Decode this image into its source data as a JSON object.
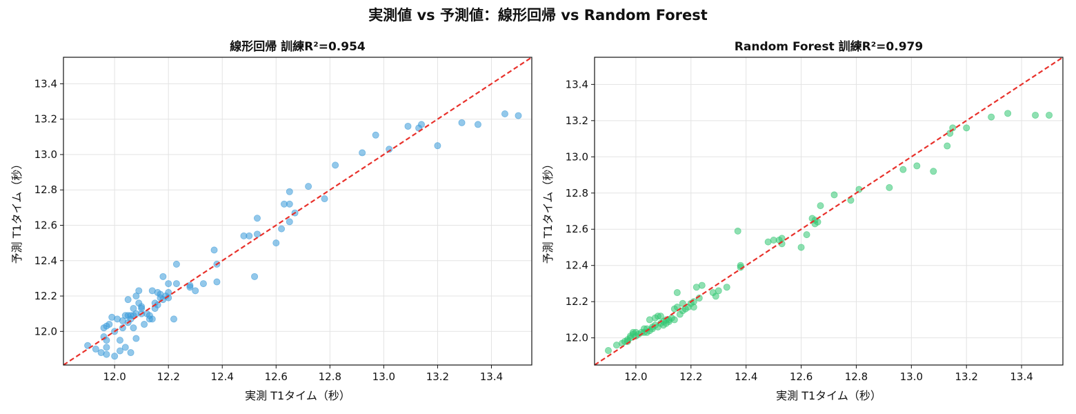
{
  "figure_title": "実測値 vs 予測値：線形回帰 vs Random Forest",
  "colors": {
    "linear_points": "#3a9ad9",
    "rf_points": "#33c773",
    "reference_line": "#e8302a",
    "grid": "#e3e3e3"
  },
  "chart_data": [
    {
      "type": "scatter",
      "title": "線形回帰  訓練R²=0.954",
      "xlabel": "実測 T1タイム（秒）",
      "ylabel": "予測 T1タイム（秒）",
      "xlim": [
        11.81,
        13.55
      ],
      "ylim": [
        11.81,
        13.55
      ],
      "xticks": [
        "12.0",
        "12.2",
        "12.4",
        "12.6",
        "12.8",
        "13.0",
        "13.2",
        "13.4"
      ],
      "yticks": [
        "12.0",
        "12.2",
        "12.4",
        "12.6",
        "12.8",
        "13.0",
        "13.2",
        "13.4"
      ],
      "grid": true,
      "reference_line": "y = x (dashed)",
      "points": [
        [
          11.9,
          11.92
        ],
        [
          11.93,
          11.9
        ],
        [
          11.95,
          11.88
        ],
        [
          11.96,
          11.97
        ],
        [
          11.96,
          12.02
        ],
        [
          11.97,
          11.95
        ],
        [
          11.97,
          11.91
        ],
        [
          11.97,
          11.87
        ],
        [
          11.97,
          12.03
        ],
        [
          11.98,
          12.04
        ],
        [
          11.99,
          12.08
        ],
        [
          12.0,
          12.0
        ],
        [
          12.0,
          11.86
        ],
        [
          12.01,
          12.07
        ],
        [
          12.02,
          11.89
        ],
        [
          12.02,
          11.95
        ],
        [
          12.03,
          12.06
        ],
        [
          12.03,
          12.02
        ],
        [
          12.04,
          12.09
        ],
        [
          12.04,
          11.91
        ],
        [
          12.05,
          12.05
        ],
        [
          12.05,
          12.09
        ],
        [
          12.05,
          12.18
        ],
        [
          12.06,
          12.09
        ],
        [
          12.06,
          12.07
        ],
        [
          12.06,
          11.88
        ],
        [
          12.07,
          12.09
        ],
        [
          12.07,
          12.13
        ],
        [
          12.07,
          12.02
        ],
        [
          12.08,
          12.1
        ],
        [
          12.08,
          12.2
        ],
        [
          12.08,
          11.96
        ],
        [
          12.09,
          12.23
        ],
        [
          12.09,
          12.16
        ],
        [
          12.1,
          12.13
        ],
        [
          12.1,
          12.14
        ],
        [
          12.1,
          12.1
        ],
        [
          12.11,
          12.04
        ],
        [
          12.12,
          12.1
        ],
        [
          12.13,
          12.07
        ],
        [
          12.13,
          12.09
        ],
        [
          12.14,
          12.07
        ],
        [
          12.14,
          12.23
        ],
        [
          12.15,
          12.13
        ],
        [
          12.15,
          12.16
        ],
        [
          12.16,
          12.15
        ],
        [
          12.16,
          12.22
        ],
        [
          12.17,
          12.19
        ],
        [
          12.17,
          12.21
        ],
        [
          12.18,
          12.31
        ],
        [
          12.18,
          12.18
        ],
        [
          12.19,
          12.2
        ],
        [
          12.2,
          12.19
        ],
        [
          12.2,
          12.22
        ],
        [
          12.2,
          12.27
        ],
        [
          12.22,
          12.07
        ],
        [
          12.23,
          12.27
        ],
        [
          12.23,
          12.38
        ],
        [
          12.28,
          12.26
        ],
        [
          12.28,
          12.25
        ],
        [
          12.3,
          12.23
        ],
        [
          12.33,
          12.27
        ],
        [
          12.37,
          12.46
        ],
        [
          12.38,
          12.38
        ],
        [
          12.38,
          12.28
        ],
        [
          12.48,
          12.54
        ],
        [
          12.5,
          12.54
        ],
        [
          12.52,
          12.31
        ],
        [
          12.53,
          12.55
        ],
        [
          12.53,
          12.64
        ],
        [
          12.6,
          12.5
        ],
        [
          12.62,
          12.58
        ],
        [
          12.63,
          12.72
        ],
        [
          12.65,
          12.62
        ],
        [
          12.65,
          12.72
        ],
        [
          12.65,
          12.79
        ],
        [
          12.67,
          12.67
        ],
        [
          12.72,
          12.82
        ],
        [
          12.78,
          12.75
        ],
        [
          12.82,
          12.94
        ],
        [
          12.92,
          13.01
        ],
        [
          12.97,
          13.11
        ],
        [
          13.02,
          13.03
        ],
        [
          13.09,
          13.16
        ],
        [
          13.13,
          13.15
        ],
        [
          13.14,
          13.17
        ],
        [
          13.2,
          13.05
        ],
        [
          13.29,
          13.18
        ],
        [
          13.35,
          13.17
        ],
        [
          13.45,
          13.23
        ],
        [
          13.5,
          13.22
        ]
      ]
    },
    {
      "type": "scatter",
      "title": "Random Forest  訓練R²=0.979",
      "xlabel": "実測 T1タイム（秒）",
      "ylabel": "予測 T1タイム（秒）",
      "xlim": [
        11.85,
        13.55
      ],
      "ylim": [
        11.85,
        13.55
      ],
      "xticks": [
        "12.0",
        "12.2",
        "12.4",
        "12.6",
        "12.8",
        "13.0",
        "13.2",
        "13.4"
      ],
      "yticks": [
        "12.0",
        "12.2",
        "12.4",
        "12.6",
        "12.8",
        "13.0",
        "13.2",
        "13.4"
      ],
      "grid": true,
      "reference_line": "y = x (dashed)",
      "points": [
        [
          11.9,
          11.93
        ],
        [
          11.93,
          11.96
        ],
        [
          11.95,
          11.97
        ],
        [
          11.96,
          11.98
        ],
        [
          11.97,
          11.98
        ],
        [
          11.97,
          11.99
        ],
        [
          11.98,
          12.0
        ],
        [
          11.98,
          12.01
        ],
        [
          11.99,
          12.02
        ],
        [
          11.99,
          12.03
        ],
        [
          12.0,
          12.01
        ],
        [
          12.0,
          12.03
        ],
        [
          12.01,
          12.02
        ],
        [
          12.02,
          12.03
        ],
        [
          12.03,
          12.03
        ],
        [
          12.03,
          12.05
        ],
        [
          12.04,
          12.03
        ],
        [
          12.04,
          12.05
        ],
        [
          12.05,
          12.04
        ],
        [
          12.05,
          12.1
        ],
        [
          12.06,
          12.06
        ],
        [
          12.06,
          12.05
        ],
        [
          12.07,
          12.07
        ],
        [
          12.07,
          12.11
        ],
        [
          12.08,
          12.12
        ],
        [
          12.08,
          12.06
        ],
        [
          12.09,
          12.08
        ],
        [
          12.09,
          12.12
        ],
        [
          12.1,
          12.09
        ],
        [
          12.1,
          12.07
        ],
        [
          12.11,
          12.1
        ],
        [
          12.11,
          12.08
        ],
        [
          12.12,
          12.09
        ],
        [
          12.12,
          12.1
        ],
        [
          12.13,
          12.11
        ],
        [
          12.14,
          12.16
        ],
        [
          12.14,
          12.1
        ],
        [
          12.15,
          12.17
        ],
        [
          12.15,
          12.25
        ],
        [
          12.16,
          12.13
        ],
        [
          12.17,
          12.15
        ],
        [
          12.17,
          12.19
        ],
        [
          12.18,
          12.16
        ],
        [
          12.19,
          12.17
        ],
        [
          12.2,
          12.19
        ],
        [
          12.21,
          12.2
        ],
        [
          12.21,
          12.17
        ],
        [
          12.22,
          12.28
        ],
        [
          12.23,
          12.22
        ],
        [
          12.24,
          12.29
        ],
        [
          12.28,
          12.25
        ],
        [
          12.29,
          12.23
        ],
        [
          12.3,
          12.26
        ],
        [
          12.33,
          12.28
        ],
        [
          12.37,
          12.59
        ],
        [
          12.38,
          12.4
        ],
        [
          12.38,
          12.39
        ],
        [
          12.48,
          12.53
        ],
        [
          12.5,
          12.54
        ],
        [
          12.52,
          12.54
        ],
        [
          12.53,
          12.55
        ],
        [
          12.53,
          12.52
        ],
        [
          12.6,
          12.5
        ],
        [
          12.62,
          12.57
        ],
        [
          12.64,
          12.66
        ],
        [
          12.65,
          12.65
        ],
        [
          12.65,
          12.63
        ],
        [
          12.66,
          12.64
        ],
        [
          12.67,
          12.73
        ],
        [
          12.72,
          12.79
        ],
        [
          12.78,
          12.76
        ],
        [
          12.81,
          12.82
        ],
        [
          12.92,
          12.83
        ],
        [
          12.97,
          12.93
        ],
        [
          13.02,
          12.95
        ],
        [
          13.08,
          12.92
        ],
        [
          13.13,
          13.06
        ],
        [
          13.14,
          13.13
        ],
        [
          13.15,
          13.16
        ],
        [
          13.2,
          13.16
        ],
        [
          13.29,
          13.22
        ],
        [
          13.35,
          13.24
        ],
        [
          13.45,
          13.23
        ],
        [
          13.5,
          13.23
        ]
      ]
    }
  ]
}
